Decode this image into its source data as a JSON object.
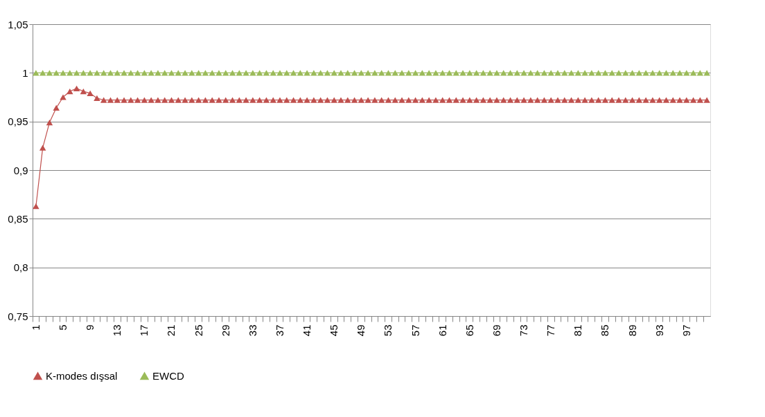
{
  "chart_data": {
    "type": "line",
    "categories": [
      "1",
      null,
      null,
      null,
      "5",
      null,
      null,
      null,
      "9",
      null,
      null,
      null,
      "13",
      null,
      null,
      null,
      "17",
      null,
      null,
      null,
      "21",
      null,
      null,
      null,
      "25",
      null,
      null,
      null,
      "29",
      null,
      null,
      null,
      "33",
      null,
      null,
      null,
      "37",
      null,
      null,
      null,
      "41",
      null,
      null,
      null,
      "45",
      null,
      null,
      null,
      "49",
      null,
      null,
      null,
      "53",
      null,
      null,
      null,
      "57",
      null,
      null,
      null,
      "61",
      null,
      null,
      null,
      "65",
      null,
      null,
      null,
      "69",
      null,
      null,
      null,
      "73",
      null,
      null,
      null,
      "77",
      null,
      null,
      null,
      "81",
      null,
      null,
      null,
      "85",
      null,
      null,
      null,
      "89",
      null,
      null,
      null,
      "93",
      null,
      null,
      null,
      "97",
      null,
      null,
      null
    ],
    "series": [
      {
        "name": "K-modes dışsal",
        "color": "#c0504d",
        "values": [
          0.863,
          0.923,
          0.949,
          0.964,
          0.975,
          0.981,
          0.984,
          0.981,
          0.979,
          0.974,
          0.972,
          0.972,
          0.972,
          0.972,
          0.972,
          0.972,
          0.972,
          0.972,
          0.972,
          0.972,
          0.972,
          0.972,
          0.972,
          0.972,
          0.972,
          0.972,
          0.972,
          0.972,
          0.972,
          0.972,
          0.972,
          0.972,
          0.972,
          0.972,
          0.972,
          0.972,
          0.972,
          0.972,
          0.972,
          0.972,
          0.972,
          0.972,
          0.972,
          0.972,
          0.972,
          0.972,
          0.972,
          0.972,
          0.972,
          0.972,
          0.972,
          0.972,
          0.972,
          0.972,
          0.972,
          0.972,
          0.972,
          0.972,
          0.972,
          0.972,
          0.972,
          0.972,
          0.972,
          0.972,
          0.972,
          0.972,
          0.972,
          0.972,
          0.972,
          0.972,
          0.972,
          0.972,
          0.972,
          0.972,
          0.972,
          0.972,
          0.972,
          0.972,
          0.972,
          0.972,
          0.972,
          0.972,
          0.972,
          0.972,
          0.972,
          0.972,
          0.972,
          0.972,
          0.972,
          0.972,
          0.972,
          0.972,
          0.972,
          0.972,
          0.972,
          0.972,
          0.972,
          0.972,
          0.972,
          0.972
        ]
      },
      {
        "name": "EWCD",
        "color": "#9bbb59",
        "values": [
          1,
          1,
          1,
          1,
          1,
          1,
          1,
          1,
          1,
          1,
          1,
          1,
          1,
          1,
          1,
          1,
          1,
          1,
          1,
          1,
          1,
          1,
          1,
          1,
          1,
          1,
          1,
          1,
          1,
          1,
          1,
          1,
          1,
          1,
          1,
          1,
          1,
          1,
          1,
          1,
          1,
          1,
          1,
          1,
          1,
          1,
          1,
          1,
          1,
          1,
          1,
          1,
          1,
          1,
          1,
          1,
          1,
          1,
          1,
          1,
          1,
          1,
          1,
          1,
          1,
          1,
          1,
          1,
          1,
          1,
          1,
          1,
          1,
          1,
          1,
          1,
          1,
          1,
          1,
          1,
          1,
          1,
          1,
          1,
          1,
          1,
          1,
          1,
          1,
          1,
          1,
          1,
          1,
          1,
          1,
          1,
          1,
          1,
          1,
          1
        ]
      }
    ],
    "ylim": [
      0.75,
      1.05
    ],
    "yticks": [
      {
        "value": 0.75,
        "label": "0,75"
      },
      {
        "value": 0.8,
        "label": "0,8"
      },
      {
        "value": 0.85,
        "label": "0,85"
      },
      {
        "value": 0.9,
        "label": "0,9"
      },
      {
        "value": 0.95,
        "label": "0,95"
      },
      {
        "value": 1,
        "label": "1"
      },
      {
        "value": 1.05,
        "label": "1,05"
      }
    ],
    "grid": "y",
    "legend": "bottom",
    "marker": "triangle",
    "line_style": "solid"
  }
}
